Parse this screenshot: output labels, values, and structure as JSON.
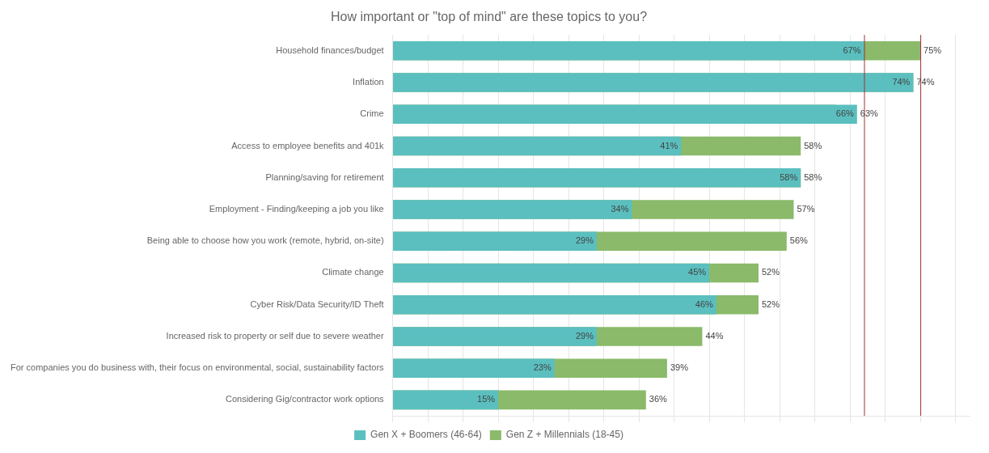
{
  "chart_data": {
    "type": "bar",
    "orientation": "horizontal",
    "title": "How important or \"top of mind\" are these topics to you?",
    "categories": [
      "Household finances/budget",
      "Inflation",
      "Crime",
      "Access to employee benefits and 401k",
      "Planning/saving for retirement",
      "Employment - Finding/keeping a job you like",
      "Being able to choose how you work (remote, hybrid, on-site)",
      "Climate change",
      "Cyber Risk/Data Security/ID Theft",
      "Increased risk to property or self due to severe weather",
      "For companies you do business with, their focus on environmental, social, sustainability factors",
      "Considering Gig/contractor work options"
    ],
    "series": [
      {
        "name": "Gen X + Boomers (46-64)",
        "color": "#5bbfbf",
        "values": [
          67,
          74,
          66,
          41,
          58,
          34,
          29,
          45,
          46,
          29,
          23,
          15
        ],
        "value_labels": [
          "67%",
          "74%",
          "66%",
          "41%",
          "58%",
          "34%",
          "29%",
          "45%",
          "46%",
          "29%",
          "23%",
          "15%"
        ]
      },
      {
        "name": "Gen Z + Millennials (18-45)",
        "color": "#8aba6a",
        "values": [
          75,
          74,
          63,
          58,
          58,
          57,
          56,
          52,
          52,
          44,
          39,
          36
        ],
        "value_labels": [
          "75%",
          "74%",
          "63%",
          "58%",
          "58%",
          "57%",
          "56%",
          "52%",
          "52%",
          "44%",
          "39%",
          "36%"
        ]
      }
    ],
    "reference_lines": [
      {
        "value": 67,
        "color": "#a03030"
      },
      {
        "value": 75,
        "color": "#a03030"
      }
    ],
    "xlim": [
      0,
      82
    ],
    "xticks": [
      0,
      5,
      10,
      15,
      20,
      25,
      30,
      35,
      40,
      45,
      50,
      55,
      60,
      65,
      70,
      75,
      80
    ],
    "grid": true,
    "legend": "bottom",
    "data_labels": true,
    "tick_labels": "y"
  }
}
